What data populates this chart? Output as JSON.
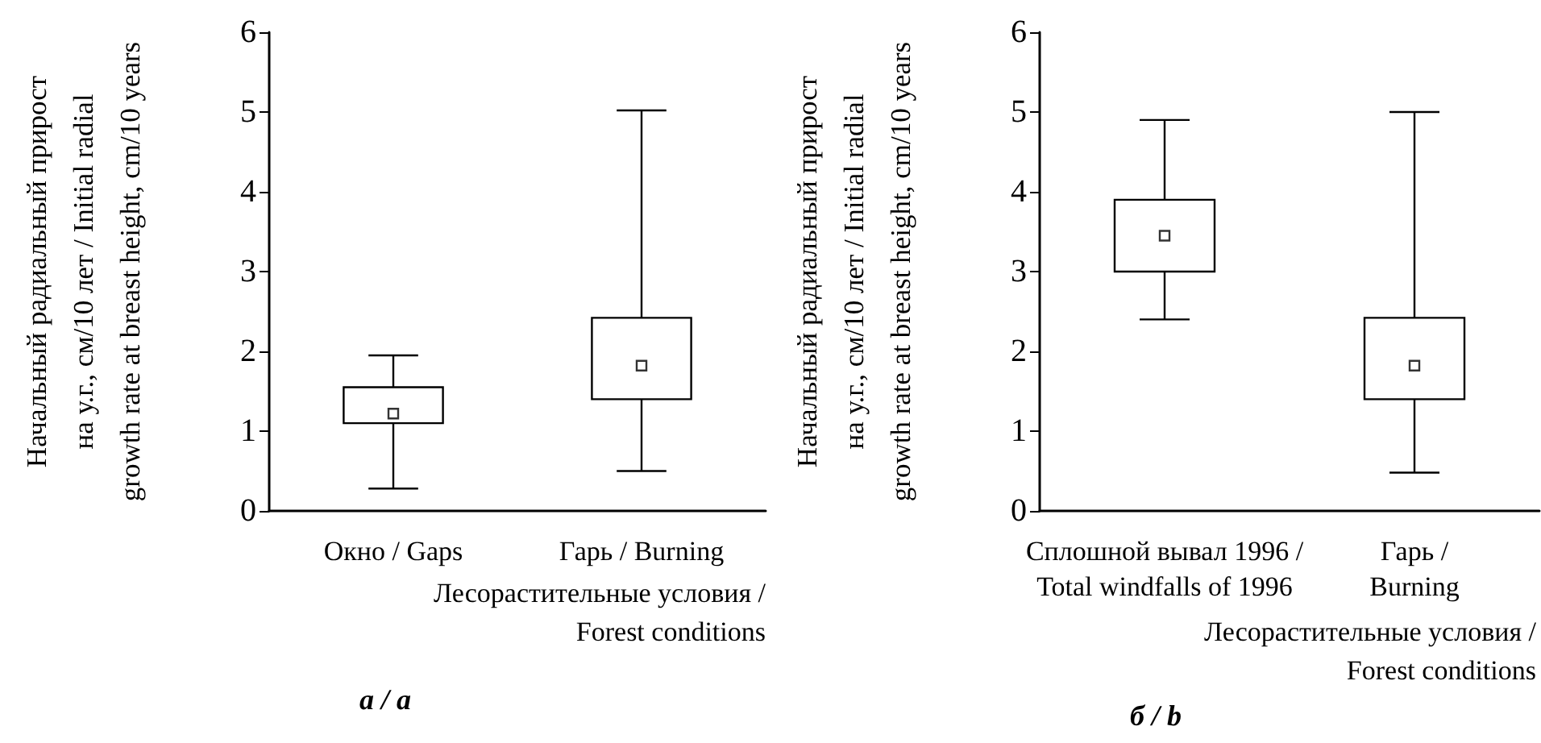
{
  "chart_data": [
    {
      "type": "box",
      "title": "a / a",
      "xlabel": "Лесорастительные условия /\nForest conditions",
      "ylabel": "Начальный радиальный прирост\nна у.г., см/10 лет / Initial radial\ngrowth rate at breast height, cm/10 years",
      "categories": [
        "Окно / Gaps",
        "Гарь / Burning"
      ],
      "boxes": [
        {
          "low": 0.28,
          "q1": 1.1,
          "median": 1.22,
          "q3": 1.55,
          "high": 1.95
        },
        {
          "low": 0.5,
          "q1": 1.4,
          "median": 1.82,
          "q3": 2.42,
          "high": 5.02
        }
      ],
      "ylim": [
        0,
        6
      ],
      "yticks": [
        0,
        1,
        2,
        3,
        4,
        5,
        6
      ],
      "grid": false
    },
    {
      "type": "box",
      "title": "б / b",
      "xlabel": "Лесорастительные условия /\nForest conditions",
      "ylabel": "Начальный радиальный прирост\nна у.г., см/10 лет / Initial radial\ngrowth rate at breast height, cm/10 years",
      "categories": [
        "Сплошной вывал 1996 /\nTotal windfalls of 1996",
        "Гарь /\nBurning"
      ],
      "boxes": [
        {
          "low": 2.4,
          "q1": 3.0,
          "median": 3.45,
          "q3": 3.9,
          "high": 4.9
        },
        {
          "low": 0.48,
          "q1": 1.4,
          "median": 1.82,
          "q3": 2.42,
          "high": 5.0
        }
      ],
      "ylim": [
        0,
        6
      ],
      "yticks": [
        0,
        1,
        2,
        3,
        4,
        5,
        6
      ],
      "grid": false
    }
  ]
}
